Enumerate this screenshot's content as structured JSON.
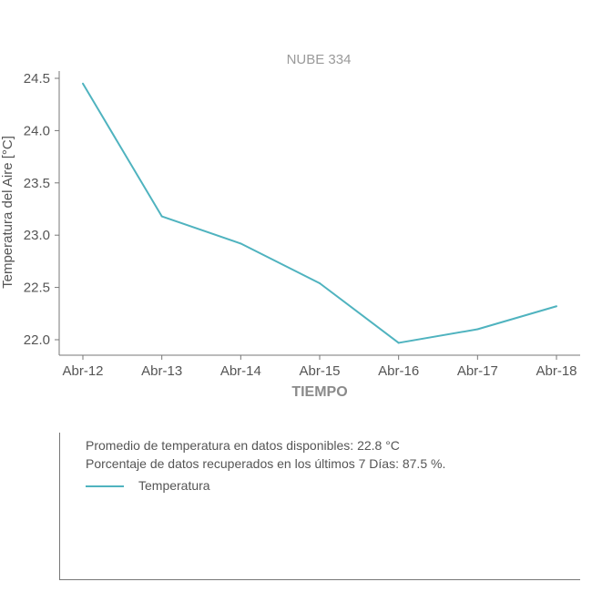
{
  "chart_data": {
    "type": "line",
    "title": "NUBE 334",
    "xlabel": "TIEMPO",
    "ylabel": "Temperatura del Aire [°C]",
    "categories": [
      "Abr-12",
      "Abr-13",
      "Abr-14",
      "Abr-15",
      "Abr-16",
      "Abr-17",
      "Abr-18"
    ],
    "series": [
      {
        "name": "Temperatura",
        "color": "#4fb3bf",
        "values": [
          24.45,
          23.18,
          22.92,
          22.54,
          21.97,
          22.1,
          22.32
        ]
      }
    ],
    "yticks": [
      "22.0",
      "22.5",
      "23.0",
      "23.5",
      "24.0",
      "24.5"
    ],
    "ylim": [
      21.85,
      24.6
    ],
    "grid": false,
    "legend_position": "bottom"
  },
  "info": {
    "average_text": "Promedio de temperatura en datos disponibles: 22.8 °C",
    "recovered_text": "Porcentaje de datos recuperados en los últimos 7 Días: 87.5 %."
  },
  "legend": {
    "label": "Temperatura",
    "color": "#4fb3bf"
  }
}
